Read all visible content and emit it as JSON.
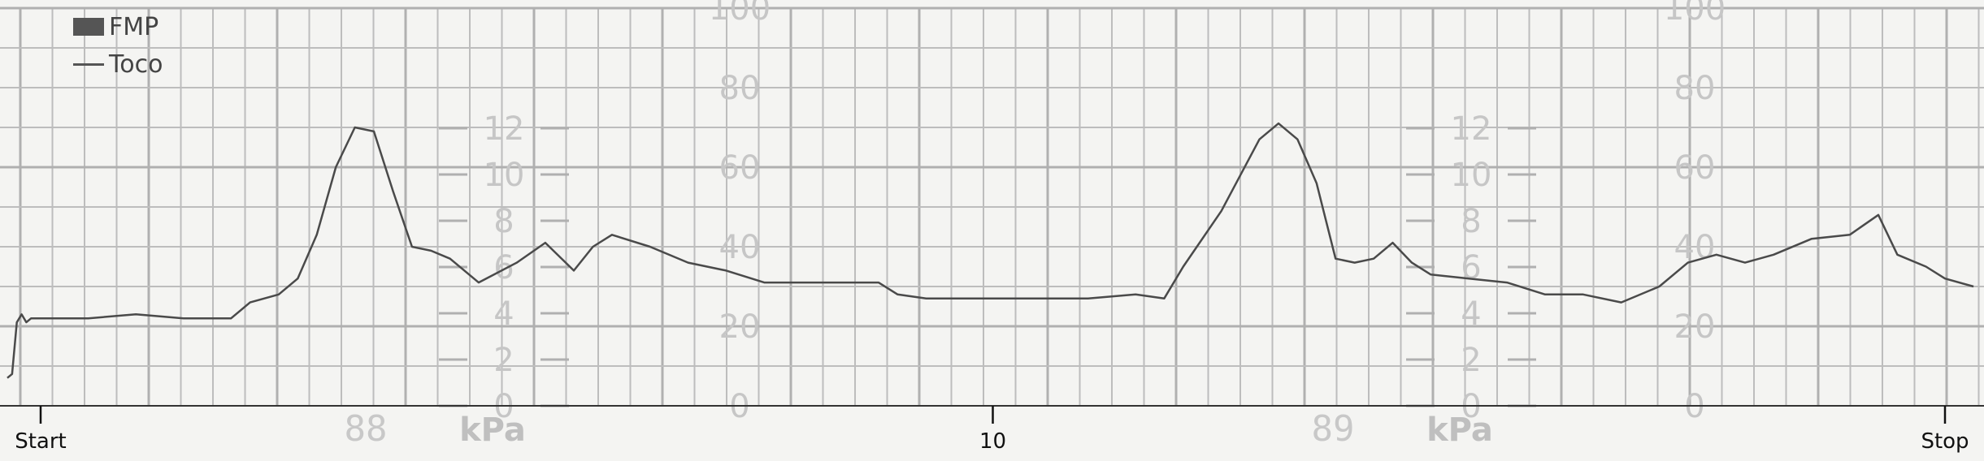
{
  "legend": [
    {
      "label": "FMP",
      "swatch": "box"
    },
    {
      "label": "Toco",
      "swatch": "line"
    }
  ],
  "colors": {
    "paper": "#f4f4f2",
    "grid": "#bdbdbd",
    "scale_text": "#c6c6c6",
    "trace": "#4a4a4a",
    "marker": "#111111"
  },
  "chart_data": {
    "type": "line",
    "title": "",
    "xlabel": "",
    "ylabel": "",
    "ylim": [
      0,
      100
    ],
    "x_markers": [
      {
        "label": "Start",
        "x": 0
      },
      {
        "label": "10",
        "x": 10
      },
      {
        "label": "Stop",
        "x": 20
      }
    ],
    "xlim": [
      0,
      20
    ],
    "pressure_scale": {
      "unit": "kPa",
      "ticks": [
        "0",
        "2",
        "4",
        "6",
        "8",
        "10",
        "12"
      ]
    },
    "percent_scale": {
      "ticks": [
        "0",
        "20",
        "40",
        "60",
        "80",
        "100"
      ]
    },
    "page_numbers": [
      "88",
      "89"
    ],
    "series": [
      {
        "name": "Toco",
        "x": [
          -0.35,
          -0.3,
          -0.25,
          -0.2,
          -0.15,
          -0.1,
          0.0,
          0.5,
          1.0,
          1.5,
          2.0,
          2.2,
          2.5,
          2.7,
          2.9,
          3.1,
          3.3,
          3.5,
          3.7,
          3.9,
          4.1,
          4.3,
          4.6,
          5.0,
          5.3,
          5.6,
          5.8,
          6.0,
          6.4,
          6.8,
          7.2,
          7.6,
          8.0,
          8.4,
          8.8,
          9.0,
          9.3,
          9.6,
          10.0,
          10.5,
          11.0,
          11.5,
          11.8,
          12.0,
          12.4,
          12.8,
          13.0,
          13.2,
          13.4,
          13.6,
          13.8,
          14.0,
          14.2,
          14.4,
          14.6,
          15.0,
          15.4,
          15.8,
          16.2,
          16.6,
          17.0,
          17.3,
          17.6,
          17.9,
          18.2,
          18.6,
          19.0,
          19.3,
          19.5,
          19.8,
          20.0,
          20.3
        ],
        "y": [
          7,
          8,
          21,
          23,
          21,
          22,
          22,
          22,
          23,
          22,
          22,
          26,
          28,
          32,
          43,
          60,
          70,
          69,
          54,
          40,
          39,
          37,
          31,
          36,
          41,
          34,
          40,
          43,
          40,
          36,
          34,
          31,
          31,
          31,
          31,
          28,
          27,
          27,
          27,
          27,
          27,
          28,
          27,
          35,
          49,
          67,
          71,
          67,
          56,
          37,
          36,
          37,
          41,
          36,
          33,
          32,
          31,
          28,
          28,
          26,
          30,
          36,
          38,
          36,
          38,
          42,
          43,
          48,
          38,
          35,
          32,
          30
        ]
      }
    ]
  }
}
